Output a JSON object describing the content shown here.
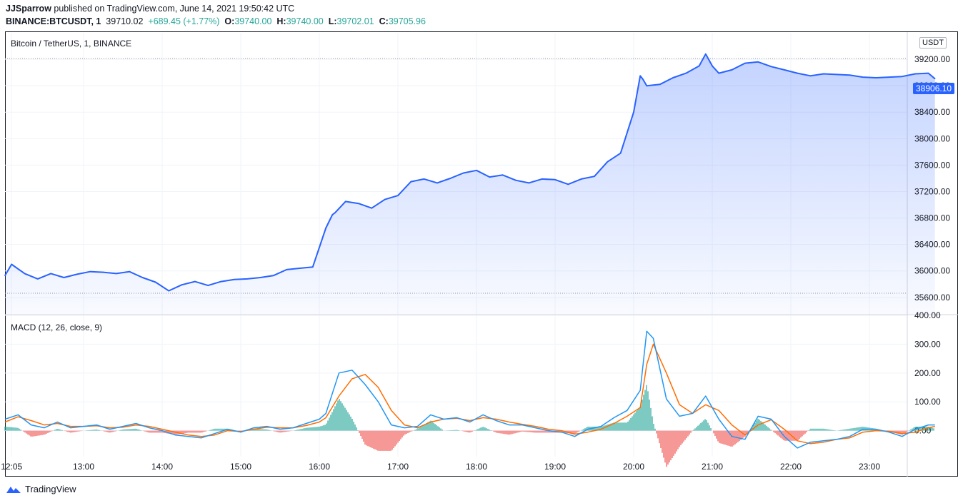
{
  "header": {
    "author": "JJSparrow",
    "published_text": "published on TradingView.com, June 14, 2021 19:50:42 UTC",
    "symbol": "BINANCE:BTCUSDT, 1",
    "last": "39710.02",
    "change": "+689.45 (+1.77%)",
    "o_label": "O:",
    "o": "39740.00",
    "h_label": "H:",
    "h": "39740.00",
    "l_label": "L:",
    "l": "39702.01",
    "c_label": "C:",
    "c": "39705.96"
  },
  "main_pane": {
    "title": "Bitcoin / TetherUS, 1, BINANCE",
    "currency_badge": "USDT",
    "price_label": "38906.10"
  },
  "macd_pane": {
    "title": "MACD (12, 26, close, 9)"
  },
  "footer": {
    "brand": "TradingView"
  },
  "colors": {
    "line": "#2962ff",
    "macd": "#2196f3",
    "signal": "#ff6d00",
    "hist_pos": "#26a69a",
    "hist_neg": "#ef5350",
    "value_text": "#26a69a"
  },
  "chart_data": [
    {
      "type": "area",
      "x_ticks": [
        "12:05",
        "13:00",
        "14:00",
        "15:00",
        "16:00",
        "17:00",
        "18:00",
        "19:00",
        "20:00",
        "21:00",
        "22:00",
        "23:00"
      ],
      "y_ticks": [
        "35600.00",
        "36000.00",
        "36400.00",
        "36800.00",
        "37200.00",
        "37600.00",
        "38000.00",
        "38400.00",
        "38800.00",
        "39200.00"
      ],
      "ylim": [
        35350,
        39600
      ],
      "series": [
        {
          "x": [
            "12:00",
            "12:05",
            "12:15",
            "12:25",
            "12:35",
            "12:45",
            "12:55",
            "13:05",
            "13:15",
            "13:25",
            "13:35",
            "13:45",
            "13:55",
            "14:05",
            "14:15",
            "14:25",
            "14:35",
            "14:45",
            "14:55",
            "15:05",
            "15:15",
            "15:25",
            "15:35",
            "15:45",
            "15:55",
            "16:05",
            "16:10",
            "16:12",
            "16:20",
            "16:30",
            "16:40",
            "16:50",
            "17:00",
            "17:10",
            "17:20",
            "17:30",
            "17:40",
            "17:50",
            "18:00",
            "18:10",
            "18:20",
            "18:30",
            "18:40",
            "18:50",
            "19:00",
            "19:10",
            "19:20",
            "19:30",
            "19:40",
            "19:50",
            "20:00",
            "20:05",
            "20:07",
            "20:10",
            "20:20",
            "20:30",
            "20:40",
            "20:50",
            "20:55",
            "21:00",
            "21:05",
            "21:15",
            "21:25",
            "21:35",
            "21:45",
            "21:55",
            "22:05",
            "22:15",
            "22:25",
            "22:35",
            "22:45",
            "22:55",
            "23:05",
            "23:15",
            "23:25",
            "23:35",
            "23:45",
            "23:50"
          ],
          "values": [
            35930,
            36100,
            35960,
            35880,
            35960,
            35900,
            35950,
            35990,
            35980,
            35960,
            35990,
            35900,
            35830,
            35700,
            35790,
            35840,
            35780,
            35840,
            35870,
            35880,
            35900,
            35930,
            36020,
            36040,
            36060,
            36650,
            36850,
            36880,
            37050,
            37020,
            36950,
            37080,
            37140,
            37350,
            37390,
            37330,
            37400,
            37480,
            37520,
            37420,
            37450,
            37370,
            37330,
            37390,
            37380,
            37310,
            37390,
            37430,
            37650,
            37780,
            38400,
            38950,
            38900,
            38800,
            38820,
            38920,
            38990,
            39100,
            39280,
            39100,
            38990,
            39040,
            39140,
            39160,
            39090,
            39040,
            38990,
            38950,
            38980,
            38970,
            38960,
            38930,
            38920,
            38930,
            38940,
            38980,
            38990,
            38906.1
          ]
        }
      ],
      "legend": "none"
    },
    {
      "type": "line",
      "y_ticks": [
        "0.00",
        "100.00",
        "200.00",
        "300.00",
        "400.00"
      ],
      "ylim": [
        -90,
        400
      ],
      "x": [
        "12:00",
        "12:10",
        "12:20",
        "12:30",
        "12:40",
        "12:50",
        "13:00",
        "13:10",
        "13:20",
        "13:30",
        "13:40",
        "13:50",
        "14:00",
        "14:10",
        "14:20",
        "14:30",
        "14:40",
        "14:50",
        "15:00",
        "15:10",
        "15:20",
        "15:30",
        "15:40",
        "15:50",
        "16:00",
        "16:05",
        "16:15",
        "16:25",
        "16:35",
        "16:45",
        "16:55",
        "17:05",
        "17:15",
        "17:25",
        "17:35",
        "17:45",
        "17:55",
        "18:05",
        "18:15",
        "18:25",
        "18:35",
        "18:45",
        "18:55",
        "19:05",
        "19:15",
        "19:25",
        "19:35",
        "19:45",
        "19:55",
        "20:05",
        "20:10",
        "20:15",
        "20:25",
        "20:35",
        "20:45",
        "20:55",
        "21:05",
        "21:15",
        "21:25",
        "21:35",
        "21:45",
        "21:55",
        "22:05",
        "22:15",
        "22:25",
        "22:35",
        "22:45",
        "22:55",
        "23:05",
        "23:15",
        "23:25",
        "23:35",
        "23:45",
        "23:50"
      ],
      "series": [
        {
          "name": "MACD",
          "values": [
            40,
            55,
            20,
            10,
            30,
            10,
            15,
            20,
            5,
            15,
            25,
            10,
            0,
            -15,
            -20,
            -25,
            -10,
            5,
            -5,
            10,
            15,
            5,
            10,
            25,
            40,
            60,
            200,
            210,
            160,
            100,
            20,
            10,
            15,
            55,
            40,
            45,
            30,
            55,
            35,
            20,
            20,
            10,
            0,
            -5,
            -20,
            5,
            15,
            45,
            70,
            140,
            345,
            320,
            110,
            50,
            60,
            120,
            40,
            -20,
            -30,
            50,
            40,
            -20,
            -60,
            -40,
            -35,
            -30,
            -20,
            5,
            5,
            -5,
            -20,
            5,
            20,
            20
          ],
          "signal_values": [
            30,
            48,
            35,
            20,
            25,
            15,
            15,
            17,
            10,
            12,
            20,
            15,
            5,
            -5,
            -15,
            -20,
            -15,
            0,
            -3,
            5,
            12,
            10,
            10,
            18,
            30,
            45,
            120,
            180,
            195,
            150,
            70,
            20,
            10,
            30,
            40,
            43,
            35,
            45,
            40,
            30,
            22,
            15,
            5,
            0,
            -12,
            -5,
            5,
            25,
            50,
            80,
            230,
            300,
            200,
            90,
            60,
            90,
            70,
            20,
            -15,
            20,
            38,
            5,
            -35,
            -45,
            -40,
            -30,
            -25,
            -5,
            0,
            -2,
            -10,
            -5,
            10,
            15
          ]
        }
      ],
      "histogram_note": "green above zero, red below zero"
    }
  ]
}
